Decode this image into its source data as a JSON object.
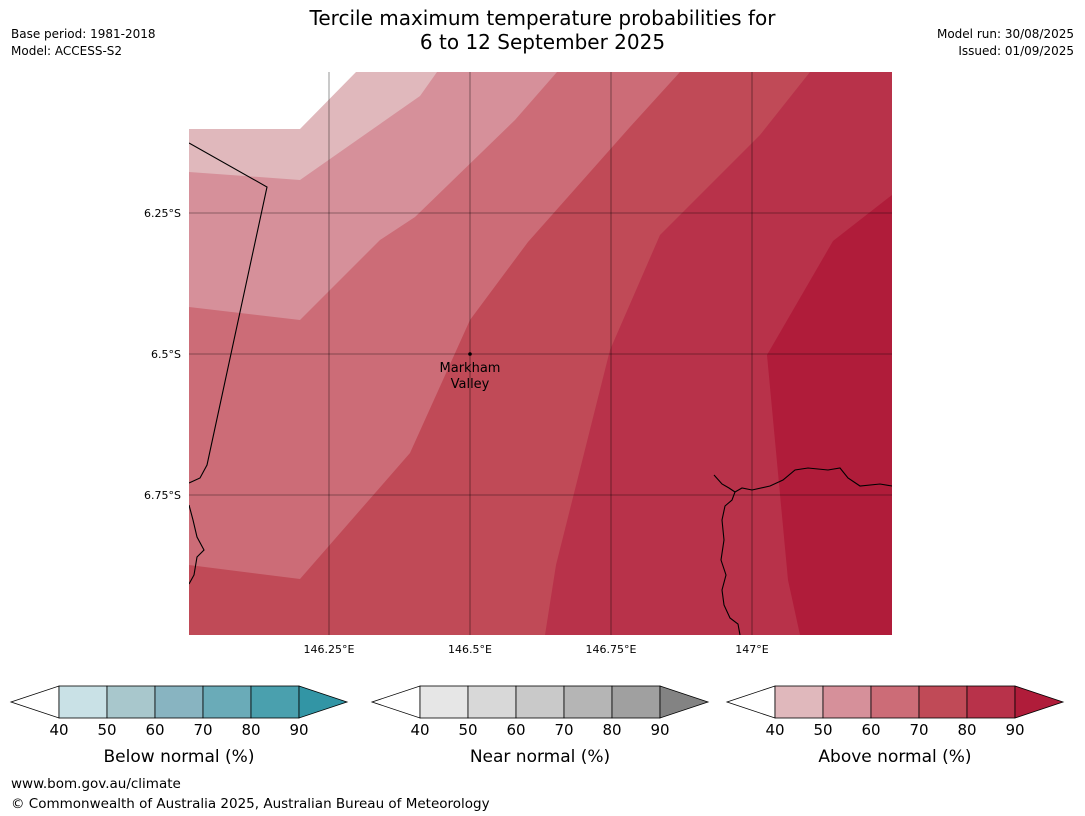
{
  "header": {
    "title_line1": "Tercile maximum temperature probabilities for",
    "title_line2": "6 to 12 September 2025",
    "base_period": "Base period: 1981-2018",
    "model": "Model: ACCESS-S2",
    "model_run": "Model run: 30/08/2025",
    "issued": "Issued: 01/09/2025"
  },
  "map": {
    "lat_ticks": [
      {
        "value": -6.25,
        "label": "6.25°S"
      },
      {
        "value": -6.5,
        "label": "6.5°S"
      },
      {
        "value": -6.75,
        "label": "6.75°S"
      }
    ],
    "lon_ticks": [
      {
        "value": 146.25,
        "label": "146.25°E"
      },
      {
        "value": 146.5,
        "label": "146.5°E"
      },
      {
        "value": 146.75,
        "label": "146.75°E"
      },
      {
        "value": 147.0,
        "label": "147°E"
      }
    ],
    "location": {
      "name_line1": "Markham",
      "name_line2": "Valley",
      "lon": 146.5,
      "lat": -6.5
    }
  },
  "legends": [
    {
      "label": "Below normal (%)",
      "colors": [
        "#c9e1e6",
        "#a8c7cc",
        "#88b4c1",
        "#6aabb8",
        "#4aa0ae"
      ],
      "extend_color": "#3295a5"
    },
    {
      "label": "Near normal (%)",
      "colors": [
        "#e6e6e6",
        "#d8d8d8",
        "#c9c9c9",
        "#b5b5b5",
        "#a0a0a0"
      ],
      "extend_color": "#838383"
    },
    {
      "label": "Above normal (%)",
      "colors": [
        "#e0b8bc",
        "#d6909a",
        "#cc6c77",
        "#c04a57",
        "#b8324a"
      ],
      "extend_color": "#b01c3a"
    }
  ],
  "legend_ticks": [
    "40",
    "50",
    "60",
    "70",
    "80",
    "90"
  ],
  "footer": {
    "url": "www.bom.gov.au/climate",
    "copyright": "© Commonwealth of Australia 2025, Australian Bureau of Meteorology"
  }
}
